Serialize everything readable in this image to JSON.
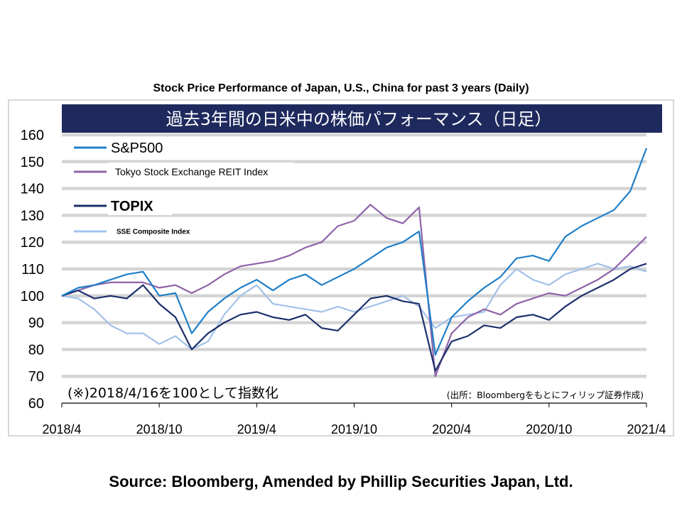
{
  "page": {
    "title": "Stock Price Performance of Japan, U.S., China for past 3 years (Daily)",
    "source": "Source: Bloomberg, Amended by Phillip Securities Japan, Ltd."
  },
  "chart_data": {
    "type": "line",
    "title": "過去3年間の日米中の株価パフォーマンス（日足）",
    "note": "(※)2018/4/16を100として指数化",
    "credit": "(出所：Bloombergをもとにフィリップ証券作成)",
    "x_ticks": [
      "2018/4",
      "2018/10",
      "2019/4",
      "2019/10",
      "2020/4",
      "2020/10",
      "2021/4"
    ],
    "ylim": [
      60,
      160
    ],
    "y_ticks": [
      60,
      70,
      80,
      90,
      100,
      110,
      120,
      130,
      140,
      150,
      160
    ],
    "grid": true,
    "legend_position": "top-left",
    "x": [
      "2018/4",
      "2018/5",
      "2018/6",
      "2018/7",
      "2018/8",
      "2018/9",
      "2018/10",
      "2018/11",
      "2018/12",
      "2019/1",
      "2019/2",
      "2019/3",
      "2019/4",
      "2019/5",
      "2019/6",
      "2019/7",
      "2019/8",
      "2019/9",
      "2019/10",
      "2019/11",
      "2019/12",
      "2020/1",
      "2020/2",
      "2020/3",
      "2020/4",
      "2020/5",
      "2020/6",
      "2020/7",
      "2020/8",
      "2020/9",
      "2020/10",
      "2020/11",
      "2020/12",
      "2021/1",
      "2021/2",
      "2021/3",
      "2021/4"
    ],
    "series": [
      {
        "name": "S&P500",
        "color": "#1f7fc8",
        "values": [
          100,
          103,
          104,
          106,
          108,
          109,
          100,
          101,
          86,
          94,
          99,
          103,
          106,
          102,
          106,
          108,
          104,
          107,
          110,
          114,
          118,
          120,
          124,
          78,
          92,
          98,
          103,
          107,
          114,
          115,
          113,
          122,
          126,
          129,
          132,
          139,
          155
        ]
      },
      {
        "name": "Tokyo Stock Exchange REIT Index",
        "color": "#8e63a8",
        "values": [
          100,
          102,
          104,
          105,
          105,
          105,
          103,
          104,
          101,
          104,
          108,
          111,
          112,
          113,
          115,
          118,
          120,
          126,
          128,
          134,
          129,
          127,
          133,
          70,
          86,
          92,
          95,
          93,
          97,
          99,
          101,
          100,
          103,
          106,
          110,
          116,
          122
        ]
      },
      {
        "name": "TOPIX",
        "color": "#1c2f6b",
        "values": [
          100,
          102,
          99,
          100,
          99,
          104,
          97,
          92,
          80,
          86,
          90,
          93,
          94,
          92,
          91,
          93,
          88,
          87,
          93,
          99,
          100,
          98,
          97,
          72,
          83,
          85,
          89,
          88,
          92,
          93,
          91,
          96,
          100,
          103,
          106,
          110,
          112
        ]
      },
      {
        "name": "SSE Composite Index",
        "color": "#a2c1e8",
        "values": [
          100,
          99,
          95,
          89,
          86,
          86,
          82,
          85,
          80,
          83,
          93,
          100,
          104,
          97,
          96,
          95,
          94,
          96,
          94,
          96,
          98,
          100,
          96,
          88,
          92,
          93,
          94,
          104,
          110,
          106,
          104,
          108,
          110,
          112,
          110,
          111,
          109
        ]
      }
    ]
  }
}
